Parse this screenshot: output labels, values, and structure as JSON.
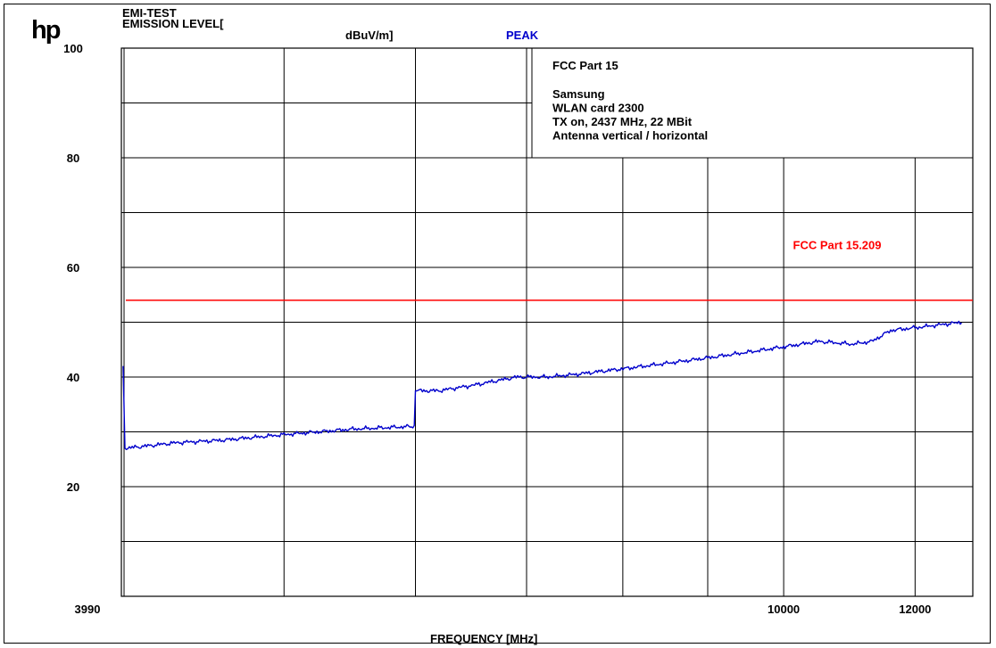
{
  "header": {
    "logo": "hp",
    "title_line1": "EMI-TEST",
    "title_line2": "EMISSION LEVEL[",
    "unit": "dBuV/m]",
    "detector": "PEAK"
  },
  "annotation": {
    "title": "FCC Part 15",
    "lines": [
      "Samsung",
      "WLAN card 2300",
      "TX on, 2437 MHz, 22 MBit",
      "Antenna vertical / horizontal"
    ]
  },
  "colors": {
    "trace": "#0000cc",
    "limit": "#ff0000",
    "grid": "#000000",
    "detector": "#0000cc"
  },
  "chart_data": {
    "type": "line",
    "xlabel": "FREQUENCY [MHz]",
    "ylabel": "EMISSION LEVEL[ dBuV/m]",
    "x_scale": "log",
    "xlim": [
      3990,
      13000
    ],
    "ylim": [
      0,
      100
    ],
    "y_ticks": [
      100,
      80,
      60,
      40,
      20
    ],
    "x_tick_labels": [
      {
        "value": 3990,
        "label": "3990"
      },
      {
        "value": 10000,
        "label": "10000"
      },
      {
        "value": 12000,
        "label": "12000"
      }
    ],
    "x_gridlines": [
      5000,
      6000,
      7000,
      8000,
      9000,
      10000,
      12000
    ],
    "grid": true,
    "limit_line": {
      "name": "FCC Part 15.209",
      "value": 54
    },
    "series": [
      {
        "x": [
          4000,
          4010,
          4300,
          4600,
          5000,
          5500,
          5990,
          6000,
          6200,
          6500,
          6900,
          7200,
          7500,
          8000,
          8500,
          9000,
          9500,
          10000,
          10500,
          11000,
          11300,
          11600,
          12000,
          12400,
          12800
        ],
        "values": [
          42,
          27,
          28,
          28.5,
          29.5,
          30.5,
          31,
          37.5,
          37.5,
          38.5,
          40,
          40,
          40.5,
          41.5,
          42.5,
          43.5,
          44.5,
          45.5,
          46.5,
          46,
          46.5,
          48.5,
          49,
          49.5,
          50
        ]
      }
    ]
  }
}
